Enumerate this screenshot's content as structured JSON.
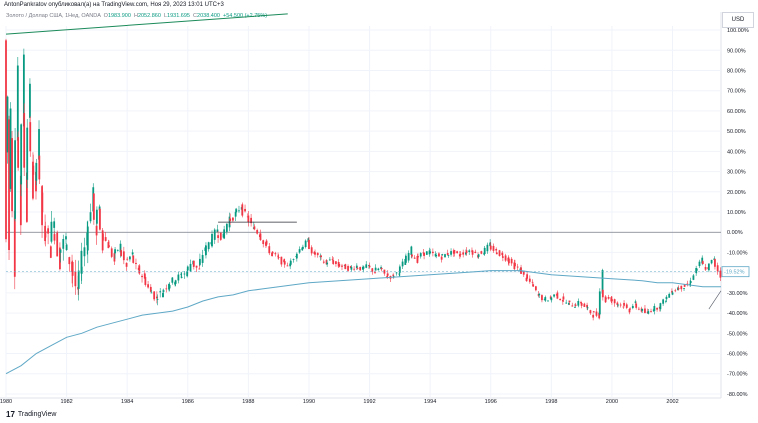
{
  "header": {
    "title": "AntonPankratov опубликовал(а) на TradingView.com, Ноя 29, 2023 13:01 UTC+3"
  },
  "legend": {
    "symbol": "Золото / Доллар США, 1Нед, OANDA",
    "o": "O",
    "o_val": "1983.900",
    "h": "H",
    "h_val": "2052.860",
    "l": "L",
    "l_val": "1931.695",
    "c": "C",
    "c_val": "2038.400",
    "change": "+54.500 (+2.75%)"
  },
  "currency": "USD",
  "brand": {
    "name": "TradingView",
    "mark": "17"
  },
  "colors": {
    "up": "#089981",
    "down": "#f23645",
    "ma": "#5fa8c6",
    "trend": "#1b8a5a",
    "zero": "#787b86",
    "grid": "#f0f3fa",
    "last_label_border": "#5fa8c6"
  },
  "chart_data": {
    "type": "candlestick",
    "ylabel": "",
    "y_unit": "%",
    "ylim": [
      -82,
      102
    ],
    "xlim": [
      1980.0,
      2003.6
    ],
    "y_ticks": [
      "100.00%",
      "90.00%",
      "80.00%",
      "70.00%",
      "60.00%",
      "50.00%",
      "40.00%",
      "30.00%",
      "20.00%",
      "10.00%",
      "0.00%",
      "-10.00%",
      "-20.00%",
      "-30.00%",
      "-40.00%",
      "-50.00%",
      "-60.00%",
      "-70.00%",
      "-80.00%"
    ],
    "x_ticks": [
      "1980",
      "1982",
      "1984",
      "1986",
      "1988",
      "1990",
      "1992",
      "1994",
      "1996",
      "1998",
      "2000",
      "2002"
    ],
    "x_tick_values": [
      1980,
      1982,
      1984,
      1986,
      1988,
      1990,
      1992,
      1994,
      1996,
      1998,
      2000,
      2002
    ],
    "last_value_label": "-19.52%",
    "last_value": -19.52,
    "price_path": [
      [
        1980.0,
        95
      ],
      [
        1980.05,
        40
      ],
      [
        1980.1,
        55
      ],
      [
        1980.15,
        20
      ],
      [
        1980.2,
        45
      ],
      [
        1980.3,
        10
      ],
      [
        1980.4,
        50
      ],
      [
        1980.5,
        25
      ],
      [
        1980.6,
        58
      ],
      [
        1980.7,
        30
      ],
      [
        1980.8,
        55
      ],
      [
        1980.9,
        35
      ],
      [
        1981.0,
        25
      ],
      [
        1981.1,
        40
      ],
      [
        1981.2,
        20
      ],
      [
        1981.3,
        5
      ],
      [
        1981.5,
        -5
      ],
      [
        1981.6,
        3
      ],
      [
        1981.8,
        -10
      ],
      [
        1982.0,
        -5
      ],
      [
        1982.2,
        -15
      ],
      [
        1982.4,
        -28
      ],
      [
        1982.5,
        -20
      ],
      [
        1982.7,
        -5
      ],
      [
        1982.9,
        15
      ],
      [
        1983.0,
        5
      ],
      [
        1983.1,
        10
      ],
      [
        1983.2,
        0
      ],
      [
        1983.4,
        -5
      ],
      [
        1983.6,
        -12
      ],
      [
        1983.8,
        -8
      ],
      [
        1984.0,
        -15
      ],
      [
        1984.2,
        -12
      ],
      [
        1984.4,
        -18
      ],
      [
        1984.6,
        -22
      ],
      [
        1984.8,
        -28
      ],
      [
        1985.0,
        -32
      ],
      [
        1985.2,
        -30
      ],
      [
        1985.4,
        -26
      ],
      [
        1985.6,
        -24
      ],
      [
        1985.8,
        -22
      ],
      [
        1986.0,
        -20
      ],
      [
        1986.2,
        -15
      ],
      [
        1986.4,
        -18
      ],
      [
        1986.6,
        -10
      ],
      [
        1986.8,
        -5
      ],
      [
        1987.0,
        0
      ],
      [
        1987.2,
        -2
      ],
      [
        1987.4,
        5
      ],
      [
        1987.6,
        8
      ],
      [
        1987.8,
        12
      ],
      [
        1988.0,
        8
      ],
      [
        1988.2,
        3
      ],
      [
        1988.4,
        0
      ],
      [
        1988.6,
        -5
      ],
      [
        1988.8,
        -10
      ],
      [
        1989.0,
        -12
      ],
      [
        1989.2,
        -15
      ],
      [
        1989.4,
        -16
      ],
      [
        1989.6,
        -12
      ],
      [
        1989.8,
        -8
      ],
      [
        1990.0,
        -5
      ],
      [
        1990.2,
        -10
      ],
      [
        1990.4,
        -12
      ],
      [
        1990.6,
        -15
      ],
      [
        1990.8,
        -14
      ],
      [
        1991.0,
        -16
      ],
      [
        1991.2,
        -17
      ],
      [
        1991.4,
        -18
      ],
      [
        1991.6,
        -17
      ],
      [
        1991.8,
        -18
      ],
      [
        1992.0,
        -17
      ],
      [
        1992.2,
        -19
      ],
      [
        1992.4,
        -18
      ],
      [
        1992.6,
        -21
      ],
      [
        1992.8,
        -22
      ],
      [
        1993.0,
        -20
      ],
      [
        1993.2,
        -15
      ],
      [
        1993.4,
        -10
      ],
      [
        1993.6,
        -13
      ],
      [
        1993.8,
        -11
      ],
      [
        1994.0,
        -10
      ],
      [
        1994.2,
        -11
      ],
      [
        1994.4,
        -12
      ],
      [
        1994.6,
        -11
      ],
      [
        1994.8,
        -10
      ],
      [
        1995.0,
        -11
      ],
      [
        1995.2,
        -10
      ],
      [
        1995.4,
        -9
      ],
      [
        1995.6,
        -11
      ],
      [
        1995.8,
        -10
      ],
      [
        1996.0,
        -7
      ],
      [
        1996.2,
        -9
      ],
      [
        1996.4,
        -11
      ],
      [
        1996.6,
        -13
      ],
      [
        1996.8,
        -16
      ],
      [
        1997.0,
        -18
      ],
      [
        1997.2,
        -22
      ],
      [
        1997.4,
        -25
      ],
      [
        1997.6,
        -30
      ],
      [
        1997.8,
        -33
      ],
      [
        1998.0,
        -33
      ],
      [
        1998.2,
        -31
      ],
      [
        1998.4,
        -33
      ],
      [
        1998.6,
        -35
      ],
      [
        1998.8,
        -36
      ],
      [
        1999.0,
        -35
      ],
      [
        1999.2,
        -37
      ],
      [
        1999.4,
        -40
      ],
      [
        1999.6,
        -41
      ],
      [
        1999.7,
        -28
      ],
      [
        1999.8,
        -32
      ],
      [
        2000.0,
        -33
      ],
      [
        2000.2,
        -35
      ],
      [
        2000.4,
        -36
      ],
      [
        2000.6,
        -38
      ],
      [
        2000.8,
        -36
      ],
      [
        2001.0,
        -38
      ],
      [
        2001.2,
        -40
      ],
      [
        2001.4,
        -38
      ],
      [
        2001.6,
        -37
      ],
      [
        2001.8,
        -34
      ],
      [
        2002.0,
        -30
      ],
      [
        2002.2,
        -28
      ],
      [
        2002.4,
        -27
      ],
      [
        2002.6,
        -26
      ],
      [
        2002.8,
        -20
      ],
      [
        2003.0,
        -15
      ],
      [
        2003.2,
        -18
      ],
      [
        2003.4,
        -14
      ],
      [
        2003.6,
        -19.5
      ]
    ],
    "ma_path": [
      [
        1980.0,
        -70
      ],
      [
        1980.5,
        -66
      ],
      [
        1981.0,
        -60
      ],
      [
        1981.5,
        -56
      ],
      [
        1982.0,
        -52
      ],
      [
        1982.5,
        -50
      ],
      [
        1983.0,
        -47
      ],
      [
        1983.5,
        -45
      ],
      [
        1984.0,
        -43
      ],
      [
        1984.5,
        -41
      ],
      [
        1985.0,
        -40
      ],
      [
        1985.5,
        -39
      ],
      [
        1986.0,
        -37
      ],
      [
        1986.5,
        -34
      ],
      [
        1987.0,
        -32
      ],
      [
        1987.5,
        -31
      ],
      [
        1988.0,
        -29
      ],
      [
        1988.5,
        -28
      ],
      [
        1989.0,
        -27
      ],
      [
        1989.5,
        -26
      ],
      [
        1990.0,
        -25
      ],
      [
        1991.0,
        -24
      ],
      [
        1992.0,
        -23
      ],
      [
        1993.0,
        -22
      ],
      [
        1994.0,
        -21
      ],
      [
        1995.0,
        -20
      ],
      [
        1996.0,
        -19
      ],
      [
        1996.5,
        -19
      ],
      [
        1997.0,
        -19
      ],
      [
        1997.5,
        -20
      ],
      [
        1998.0,
        -21
      ],
      [
        1999.0,
        -22
      ],
      [
        2000.0,
        -23
      ],
      [
        2001.0,
        -24
      ],
      [
        2001.5,
        -25
      ],
      [
        2002.0,
        -25
      ],
      [
        2002.5,
        -26
      ],
      [
        2003.0,
        -27
      ],
      [
        2003.6,
        -27
      ]
    ],
    "trend_line": [
      [
        1980.0,
        98
      ],
      [
        1989.3,
        108
      ]
    ],
    "horizontal_level": {
      "x": [
        1987.0,
        1989.6
      ],
      "y": 5
    },
    "ray": [
      [
        2003.2,
        -38
      ],
      [
        2003.6,
        -29
      ]
    ],
    "grid": true
  }
}
